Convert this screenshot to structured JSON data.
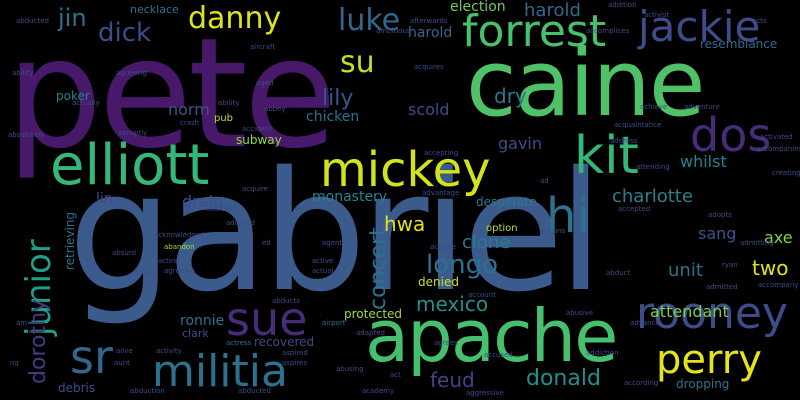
{
  "words": [
    {
      "id": "pete",
      "text": "pete",
      "color": "#48186a"
    },
    {
      "id": "gabriel",
      "text": "gabriel",
      "color": "#3b5b8c"
    },
    {
      "id": "caine",
      "text": "caine",
      "color": "#4fc267"
    },
    {
      "id": "apache",
      "text": "apache",
      "color": "#46c06f"
    },
    {
      "id": "elliott",
      "text": "elliott",
      "color": "#35b779"
    },
    {
      "id": "mickey",
      "text": "mickey",
      "color": "#d2e21b"
    },
    {
      "id": "forrest",
      "text": "forrest",
      "color": "#48c16e"
    },
    {
      "id": "jackie",
      "text": "jackie",
      "color": "#3e4c8a"
    },
    {
      "id": "kit",
      "text": "kit",
      "color": "#35b779"
    },
    {
      "id": "dos",
      "text": "dos",
      "color": "#472c7a"
    },
    {
      "id": "militia",
      "text": "militia",
      "color": "#2c728e"
    },
    {
      "id": "sue",
      "text": "sue",
      "color": "#472c7a"
    },
    {
      "id": "rooney",
      "text": "rooney",
      "color": "#3e4c8a"
    },
    {
      "id": "perry",
      "text": "perry",
      "color": "#e5e419"
    },
    {
      "id": "sr",
      "text": "sr",
      "color": "#31668e"
    },
    {
      "id": "hi",
      "text": "hi",
      "color": "#2c728e"
    },
    {
      "id": "junior",
      "text": "junior",
      "color": "#1f9e89"
    },
    {
      "id": "danny",
      "text": "danny",
      "color": "#dde318"
    },
    {
      "id": "jin",
      "text": "jin",
      "color": "#2c728e"
    },
    {
      "id": "dick",
      "text": "dick",
      "color": "#3e4c8a"
    },
    {
      "id": "luke",
      "text": "luke",
      "color": "#31668e"
    },
    {
      "id": "su",
      "text": "su",
      "color": "#c2df23"
    },
    {
      "id": "lily",
      "text": "lily",
      "color": "#3a548c"
    },
    {
      "id": "dorothy",
      "text": "dorothy",
      "color": "#443983"
    },
    {
      "id": "harold",
      "text": "harold",
      "color": "#31688e"
    },
    {
      "id": "dry",
      "text": "dry",
      "color": "#2a788e"
    },
    {
      "id": "election",
      "text": "election",
      "color": "#6ccd5a"
    },
    {
      "id": "longo",
      "text": "longo",
      "color": "#2c728e"
    },
    {
      "id": "donald",
      "text": "donald",
      "color": "#21918c"
    },
    {
      "id": "seok",
      "text": "seok",
      "color": "#35b779"
    },
    {
      "id": "charlotte",
      "text": "charlotte",
      "color": "#26828e"
    },
    {
      "id": "gavin",
      "text": "gavin",
      "color": "#3e4c8a"
    },
    {
      "id": "whilst",
      "text": "whilst",
      "color": "#26828e"
    },
    {
      "id": "two",
      "text": "two",
      "color": "#e2e418"
    },
    {
      "id": "axe",
      "text": "axe",
      "color": "#7ad151"
    },
    {
      "id": "sang",
      "text": "sang",
      "color": "#3a548c"
    },
    {
      "id": "attendant",
      "text": "attendant",
      "color": "#7ad151"
    },
    {
      "id": "clone",
      "text": "clone",
      "color": "#2a788e"
    },
    {
      "id": "mexico",
      "text": "mexico",
      "color": "#21918c"
    },
    {
      "id": "feud",
      "text": "feud",
      "color": "#414487"
    },
    {
      "id": "hwa",
      "text": "hwa",
      "color": "#dde318"
    },
    {
      "id": "concert",
      "text": "concert",
      "color": "#2c728e"
    },
    {
      "id": "monastery",
      "text": "monastery",
      "color": "#26828e"
    },
    {
      "id": "norm",
      "text": "norm",
      "color": "#3a548c"
    },
    {
      "id": "poker",
      "text": "poker",
      "color": "#26828e"
    },
    {
      "id": "chicken",
      "text": "chicken",
      "color": "#2c728e"
    },
    {
      "id": "scold",
      "text": "scold",
      "color": "#3e4c8a"
    },
    {
      "id": "subway",
      "text": "subway",
      "color": "#8fd744"
    },
    {
      "id": "drain",
      "text": "drain",
      "color": "#3e4c8a"
    },
    {
      "id": "lin",
      "text": "lin",
      "color": "#414487"
    },
    {
      "id": "jill",
      "text": "jill",
      "color": "#3a548c"
    },
    {
      "id": "ronnie",
      "text": "ronnie",
      "color": "#2c728e"
    },
    {
      "id": "clark",
      "text": "clark",
      "color": "#3e4c8a"
    },
    {
      "id": "recovered",
      "text": "recovered",
      "color": "#3e4c8a"
    },
    {
      "id": "protected",
      "text": "protected",
      "color": "#a0da39"
    },
    {
      "id": "denied",
      "text": "denied",
      "color": "#c8e020"
    },
    {
      "id": "unit",
      "text": "unit",
      "color": "#2c728e"
    },
    {
      "id": "desperate",
      "text": "desperate",
      "color": "#2a788e"
    },
    {
      "id": "resemblance",
      "text": "resemblance",
      "color": "#2f6c8e"
    },
    {
      "id": "necklace",
      "text": "necklace",
      "color": "#2c728e"
    },
    {
      "id": "debris",
      "text": "debris",
      "color": "#3e4c8a"
    },
    {
      "id": "dropping",
      "text": "dropping",
      "color": "#2c728e"
    },
    {
      "id": "retrieving",
      "text": "retrieving",
      "color": "#2c728e"
    },
    {
      "id": "pub",
      "text": "pub",
      "color": "#b5de2b"
    },
    {
      "id": "option",
      "text": "option",
      "color": "#b5de2b"
    },
    {
      "id": "activist",
      "text": "activist",
      "color": "#3e4c8a"
    },
    {
      "id": "addition",
      "text": "addition",
      "color": "#3e4c8a"
    },
    {
      "id": "acquaintance",
      "text": "acquaintance",
      "color": "#3e4c8a"
    },
    {
      "id": "acquire",
      "text": "acquire",
      "color": "#3e4c8a"
    },
    {
      "id": "accident",
      "text": "accident",
      "color": "#3e4c8a"
    },
    {
      "id": "agent",
      "text": "agent",
      "color": "#3e4c8a"
    },
    {
      "id": "airport",
      "text": "airport",
      "color": "#2c728e"
    },
    {
      "id": "actress",
      "text": "actress",
      "color": "#2c728e"
    },
    {
      "id": "abduction",
      "text": "abduction",
      "color": "#3e4c8a"
    },
    {
      "id": "abducted",
      "text": "abducted",
      "color": "#3e4c8a"
    },
    {
      "id": "aggressive",
      "text": "aggressive",
      "color": "#3e4c8a"
    },
    {
      "id": "according",
      "text": "according",
      "color": "#3e4c8a"
    },
    {
      "id": "advance",
      "text": "advance",
      "color": "#3e4c8a"
    },
    {
      "id": "acknowledges",
      "text": "acknowledges",
      "color": "#3e4c8a"
    },
    {
      "id": "abandon",
      "text": "abandon",
      "color": "#a0da39"
    },
    {
      "id": "aircraft",
      "text": "aircraft",
      "color": "#3e4c8a"
    },
    {
      "id": "ability",
      "text": "ability",
      "color": "#3e4c8a"
    },
    {
      "id": "abruptly",
      "text": "abruptly",
      "color": "#3e4c8a"
    },
    {
      "id": "activated",
      "text": "activated",
      "color": "#3e4c8a"
    },
    {
      "id": "accompanies",
      "text": "accompanies",
      "color": "#3e4c8a"
    },
    {
      "id": "adventure",
      "text": "adventure",
      "color": "#3e4c8a"
    },
    {
      "id": "creating",
      "text": "creating",
      "color": "#3e4c8a"
    },
    {
      "id": "advantage",
      "text": "advantage",
      "color": "#3e4c8a"
    },
    {
      "id": "admitted",
      "text": "admitted",
      "color": "#3e4c8a"
    },
    {
      "id": "admitting",
      "text": "admitting",
      "color": "#3e4c8a"
    },
    {
      "id": "abusive",
      "text": "abusive",
      "color": "#3e4c8a"
    },
    {
      "id": "activity",
      "text": "activity",
      "color": "#3e4c8a"
    },
    {
      "id": "afterwards",
      "text": "afterwards",
      "color": "#3e4c8a"
    },
    {
      "id": "achieve",
      "text": "achieve",
      "color": "#3e4c8a"
    },
    {
      "id": "adopts",
      "text": "adopts",
      "color": "#3e4c8a"
    },
    {
      "id": "agreeing",
      "text": "agreeing",
      "color": "#3e4c8a"
    },
    {
      "id": "ambitious",
      "text": "ambitious",
      "color": "#3e4c8a"
    },
    {
      "id": "accomplices",
      "text": "accomplices",
      "color": "#3e4c8a"
    },
    {
      "id": "accepted",
      "text": "accepted",
      "color": "#3e4c8a"
    },
    {
      "id": "actually",
      "text": "actually",
      "color": "#3e4c8a"
    },
    {
      "id": "aged",
      "text": "aged",
      "color": "#3e4c8a"
    },
    {
      "id": "abbey",
      "text": "abbey",
      "color": "#3e4c8a"
    },
    {
      "id": "accepting",
      "text": "accepting",
      "color": "#3e4c8a"
    },
    {
      "id": "acting",
      "text": "acting",
      "color": "#3e4c8a"
    },
    {
      "id": "active",
      "text": "active",
      "color": "#3e4c8a"
    },
    {
      "id": "actual",
      "text": "actual",
      "color": "#3e4c8a"
    },
    {
      "id": "adapted",
      "text": "adapted",
      "color": "#3e4c8a"
    },
    {
      "id": "addiction",
      "text": "addiction",
      "color": "#3e4c8a"
    },
    {
      "id": "act",
      "text": "act",
      "color": "#3e4c8a"
    },
    {
      "id": "abusing",
      "text": "abusing",
      "color": "#3e4c8a"
    },
    {
      "id": "absurd",
      "text": "absurd",
      "color": "#3e4c8a"
    },
    {
      "id": "abducts",
      "text": "abducts",
      "color": "#3e4c8a"
    },
    {
      "id": "ed",
      "text": "ed",
      "color": "#3e4c8a"
    },
    {
      "id": "adopted",
      "text": "adopted",
      "color": "#3e4c8a"
    },
    {
      "id": "aspires",
      "text": "aspires",
      "color": "#3e4c8a"
    },
    {
      "id": "aspired",
      "text": "aspired",
      "color": "#3e4c8a"
    },
    {
      "id": "alive",
      "text": "alive",
      "color": "#3e4c8a"
    },
    {
      "id": "absolutely",
      "text": "absolutely",
      "color": "#3e4c8a"
    },
    {
      "id": "acquires",
      "text": "acquires",
      "color": "#3e4c8a"
    },
    {
      "id": "address",
      "text": "address",
      "color": "#3e4c8a"
    },
    {
      "id": "account",
      "text": "account",
      "color": "#3e4c8a"
    },
    {
      "id": "attending",
      "text": "attending",
      "color": "#3e4c8a"
    },
    {
      "id": "academy",
      "text": "academy",
      "color": "#3e4c8a"
    },
    {
      "id": "abducted2",
      "text": "abducted",
      "color": "#3e4c8a"
    },
    {
      "id": "ability2",
      "text": "ability",
      "color": "#3e4c8a"
    },
    {
      "id": "agrees",
      "text": "agrees",
      "color": "#3e4c8a"
    },
    {
      "id": "accused",
      "text": "accused",
      "color": "#3e4c8a"
    },
    {
      "id": "agreeing2",
      "text": "agreeing",
      "color": "#3e4c8a"
    },
    {
      "id": "accompany",
      "text": "accompany",
      "color": "#3e4c8a"
    },
    {
      "id": "actions",
      "text": "actions",
      "color": "#3e4c8a"
    },
    {
      "id": "abduct",
      "text": "abduct",
      "color": "#3e4c8a"
    },
    {
      "id": "acquire2",
      "text": "acquire",
      "color": "#3e4c8a"
    },
    {
      "id": "acts",
      "text": "acts",
      "color": "#3e4c8a"
    },
    {
      "id": "ryan",
      "text": "ryan",
      "color": "#3e4c8a"
    },
    {
      "id": "ad",
      "text": "ad",
      "color": "#3e4c8a"
    },
    {
      "id": "curses",
      "text": "curses",
      "color": "#3e4c8a"
    },
    {
      "id": "crash",
      "text": "crash",
      "color": "#3e4c8a"
    },
    {
      "id": "addition2",
      "text": "addition",
      "color": "#3e4c8a"
    },
    {
      "id": "aunt",
      "text": "aunt",
      "color": "#3e4c8a"
    },
    {
      "id": "ng",
      "text": "ng",
      "color": "#3e4c8a"
    },
    {
      "id": "am",
      "text": "am",
      "color": "#3e4c8a"
    }
  ]
}
